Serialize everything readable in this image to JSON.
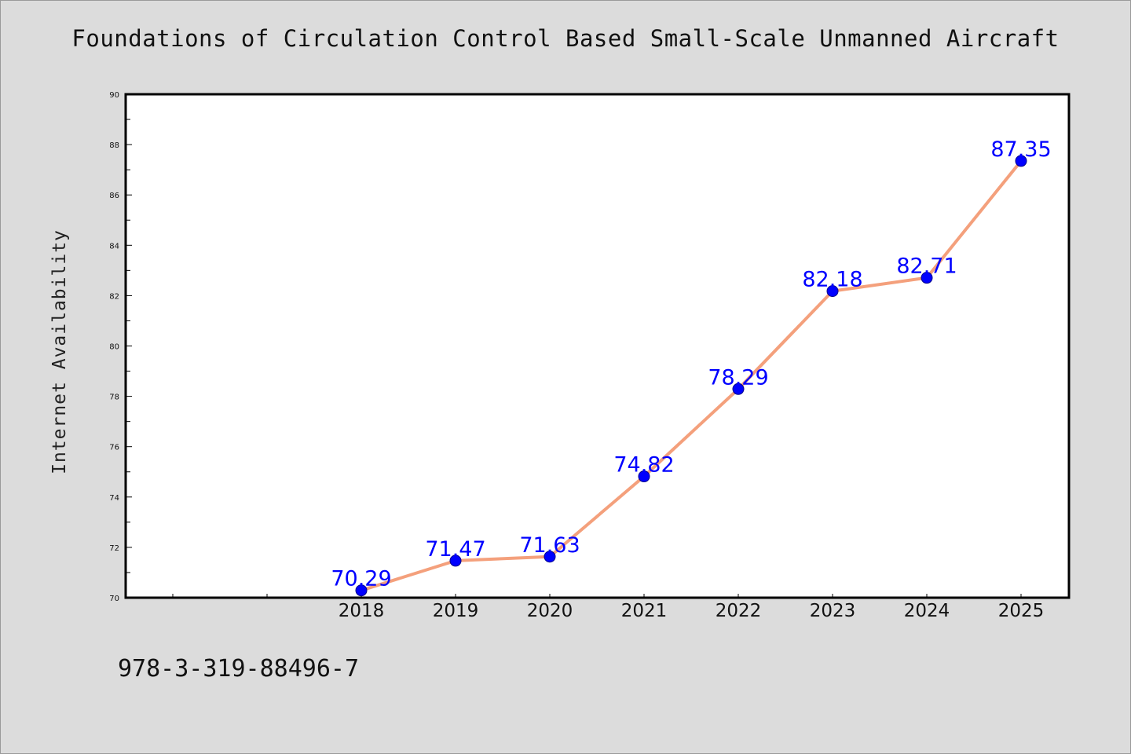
{
  "chart_data": {
    "type": "line",
    "title": "Foundations of Circulation Control Based Small-Scale Unmanned Aircraft",
    "ylabel": "Internet Availability",
    "xlabel": "",
    "categories": [
      "",
      "",
      "2018",
      "2019",
      "2020",
      "2021",
      "2022",
      "2023",
      "2024",
      "2025"
    ],
    "series": [
      {
        "x": [
          "2018",
          "2019",
          "2020",
          "2021",
          "2022",
          "2023",
          "2024",
          "2025"
        ],
        "values": [
          70.29,
          71.47,
          71.63,
          74.82,
          78.29,
          82.18,
          82.71,
          87.35
        ],
        "labels": [
          "70.29",
          "71.47",
          "71.63",
          "74.82",
          "78.29",
          "82.18",
          "82.71",
          "87.35"
        ]
      }
    ],
    "ylim": [
      70,
      90
    ],
    "yticks": [
      70,
      72,
      74,
      76,
      78,
      80,
      82,
      84,
      86,
      88,
      90
    ],
    "grid": false,
    "legend": "none",
    "colors": {
      "line": "#f4a07c",
      "marker": "#0000ff",
      "marker_edge": "#00008b",
      "data_label": "#0000ff",
      "plot_bg": "#ffffff",
      "page_bg": "#dcdcdc"
    }
  },
  "footer": {
    "code": "978-3-319-88496-7"
  }
}
